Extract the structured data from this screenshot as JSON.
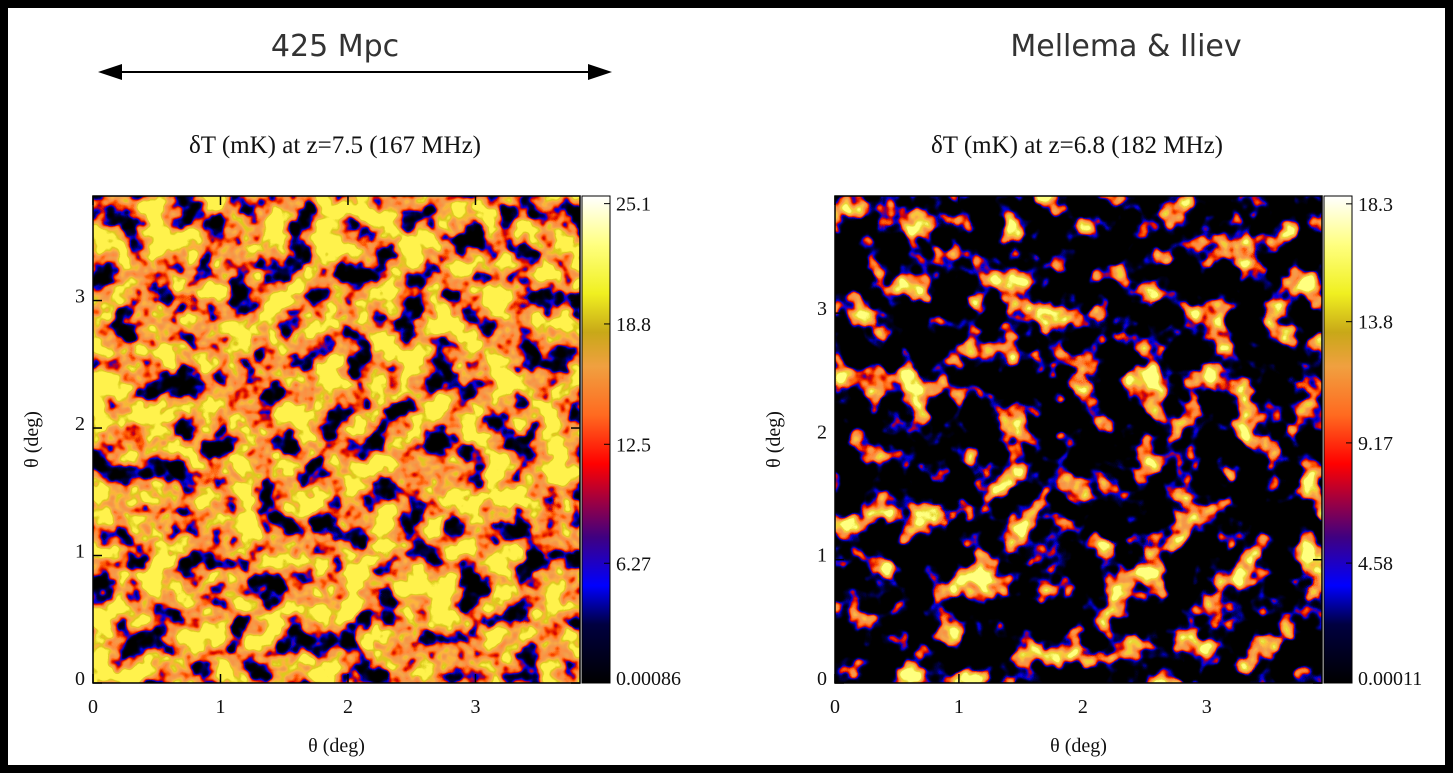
{
  "header": {
    "scale_label": "425 Mpc",
    "credit": "Mellema & Iliev"
  },
  "chart_data": [
    {
      "type": "heatmap",
      "title": "δT (mK) at z=7.5 (167 MHz)",
      "xlabel": "θ (deg)",
      "ylabel": "θ (deg)",
      "xlim": [
        0,
        3.82
      ],
      "ylim": [
        0,
        3.82
      ],
      "xticks": [
        0,
        1,
        2,
        3
      ],
      "yticks": [
        0,
        1,
        2,
        3
      ],
      "clim": [
        0,
        25.5
      ],
      "cticks": [
        0.00086,
        6.27,
        12.5,
        18.8,
        25.1
      ]
    },
    {
      "type": "heatmap",
      "title": "δT (mK) at z=6.8 (182 MHz)",
      "xlabel": "θ (deg)",
      "ylabel": "θ (deg)",
      "xlim": [
        0,
        3.93
      ],
      "ylim": [
        0,
        3.95
      ],
      "xticks": [
        0,
        1,
        2,
        3
      ],
      "yticks": [
        0,
        1,
        2,
        3
      ],
      "clim": [
        0,
        18.6
      ],
      "cticks": [
        0.00011,
        4.58,
        9.17,
        13.8,
        18.3
      ]
    }
  ]
}
